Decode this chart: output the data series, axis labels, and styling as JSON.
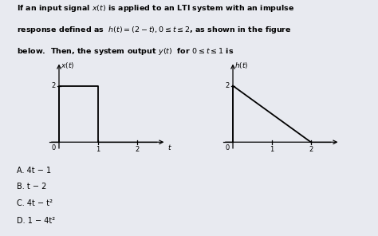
{
  "background_color": "#e8eaf0",
  "plot_bg": "#f5f5f8",
  "line1": "If an input signal $x(t)$ is applied to an LTI system with an impulse",
  "line2": "response defined as  $h(t) = (2-t), 0 \\leq t \\leq 2$, as shown in the figure",
  "line3": "below.  Then, the system output $y(t)$  for $0 \\leq t \\leq 1$ is",
  "answers": [
    "A. $4t - 1$",
    "B. $t - 2$",
    "C. $4t - t^2$",
    "D. $1 - 4t^2$"
  ],
  "answer_plain": [
    "A. 4t − 1",
    "B. t − 2",
    "C. 4t − t²",
    "D. 1 − 4t²"
  ]
}
